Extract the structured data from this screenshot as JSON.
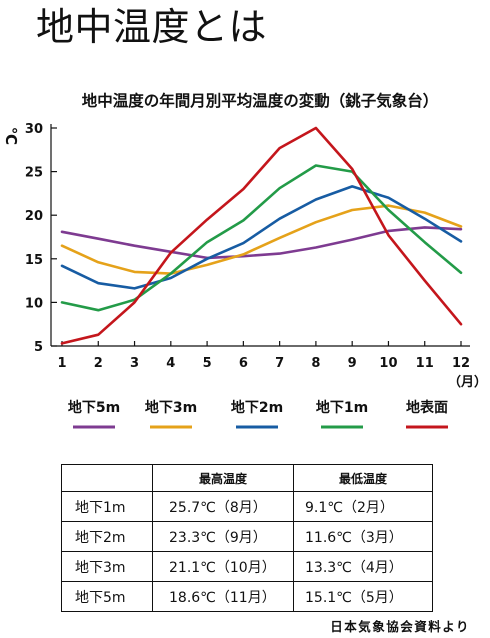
{
  "page": {
    "title": "地中温度とは"
  },
  "chart_data": {
    "type": "line",
    "title": "地中温度の年間月別平均温度の変動（銚子気象台）",
    "xlabel": "（月）",
    "ylabel": "℃",
    "categories": [
      "1",
      "2",
      "3",
      "4",
      "5",
      "6",
      "7",
      "8",
      "9",
      "10",
      "11",
      "12"
    ],
    "x": [
      1,
      2,
      3,
      4,
      5,
      6,
      7,
      8,
      9,
      10,
      11,
      12
    ],
    "ylim": [
      5,
      30
    ],
    "yticks": [
      5,
      10,
      15,
      20,
      25,
      30
    ],
    "grid": false,
    "legend": "bottom",
    "series": [
      {
        "name": "地下5m",
        "color": "#7e3b91",
        "values": [
          18.1,
          17.3,
          16.5,
          15.8,
          15.1,
          15.3,
          15.6,
          16.3,
          17.2,
          18.2,
          18.6,
          18.4
        ]
      },
      {
        "name": "地下3m",
        "color": "#e5a21a",
        "values": [
          16.5,
          14.6,
          13.5,
          13.3,
          14.3,
          15.5,
          17.4,
          19.2,
          20.6,
          21.1,
          20.3,
          18.7
        ]
      },
      {
        "name": "地下2m",
        "color": "#175ca3",
        "values": [
          14.2,
          12.2,
          11.6,
          12.8,
          15.0,
          16.8,
          19.6,
          21.8,
          23.3,
          22.0,
          19.6,
          17.0
        ]
      },
      {
        "name": "地下1m",
        "color": "#239b48",
        "values": [
          10.0,
          9.1,
          10.3,
          13.3,
          16.9,
          19.4,
          23.1,
          25.7,
          25.0,
          20.6,
          16.9,
          13.4
        ]
      },
      {
        "name": "地表面",
        "color": "#c4161c",
        "values": [
          5.3,
          6.3,
          10.0,
          15.7,
          19.5,
          23.0,
          27.7,
          30.0,
          25.3,
          17.7,
          12.5,
          7.5
        ]
      }
    ]
  },
  "table": {
    "columns": {
      "max": "最高温度",
      "min": "最低温度"
    },
    "rows": [
      {
        "label": "地下1m",
        "max": "25.7℃（8月）",
        "min": "9.1℃（2月）"
      },
      {
        "label": "地下2m",
        "max": "23.3℃（9月）",
        "min": "11.6℃（3月）"
      },
      {
        "label": "地下3m",
        "max": "21.1℃（10月）",
        "min": "13.3℃（4月）"
      },
      {
        "label": "地下5m",
        "max": "18.6℃（11月）",
        "min": "15.1℃（5月）"
      }
    ]
  },
  "source": "日本気象協会資料より"
}
